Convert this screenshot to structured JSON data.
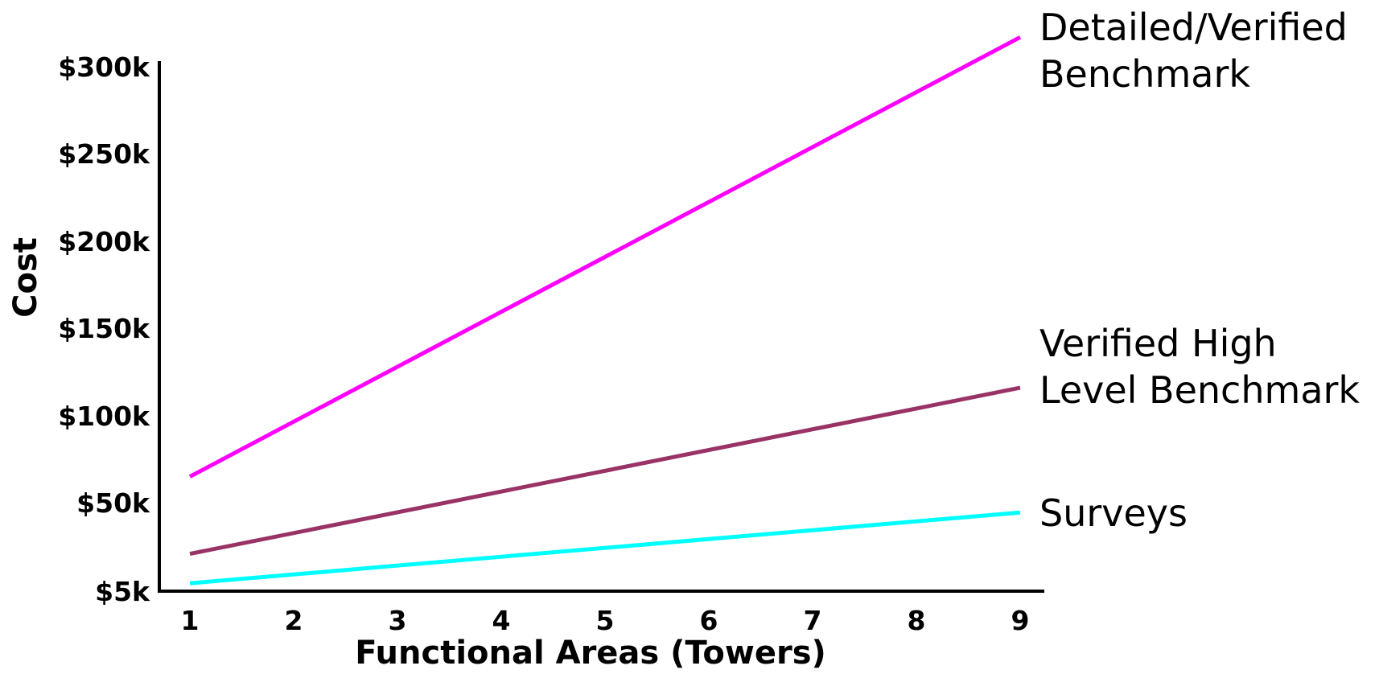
{
  "chart_data": {
    "type": "line",
    "title": "",
    "xlabel": "Functional Areas (Towers)",
    "ylabel": "Cost",
    "x_ticks": [
      "1",
      "2",
      "3",
      "4",
      "5",
      "6",
      "7",
      "8",
      "9"
    ],
    "y_ticks": [
      {
        "value": 5000,
        "label": "$5k"
      },
      {
        "value": 50000,
        "label": "$50k"
      },
      {
        "value": 100000,
        "label": "$100k"
      },
      {
        "value": 150000,
        "label": "$150k"
      },
      {
        "value": 200000,
        "label": "$200k"
      },
      {
        "value": 250000,
        "label": "$250k"
      },
      {
        "value": 300000,
        "label": "$300k"
      }
    ],
    "xlim": [
      0.7,
      9.2
    ],
    "y_scale": "piecewise-linear between tick labels",
    "grid": false,
    "legend": "labels at line ends (right)",
    "series": [
      {
        "name_lines": [
          "Detailed/Verified",
          "Benchmark"
        ],
        "color": "#ff00ff",
        "x": [
          1,
          9
        ],
        "y": [
          65000,
          317000
        ]
      },
      {
        "name_lines": [
          "Verified High",
          "Level Benchmark"
        ],
        "color": "#993366",
        "x": [
          1,
          9
        ],
        "y": [
          24000,
          116000
        ]
      },
      {
        "name_lines": [
          "Surveys"
        ],
        "color": "#00ffff",
        "x": [
          1,
          9
        ],
        "y": [
          9000,
          45000
        ]
      }
    ]
  }
}
